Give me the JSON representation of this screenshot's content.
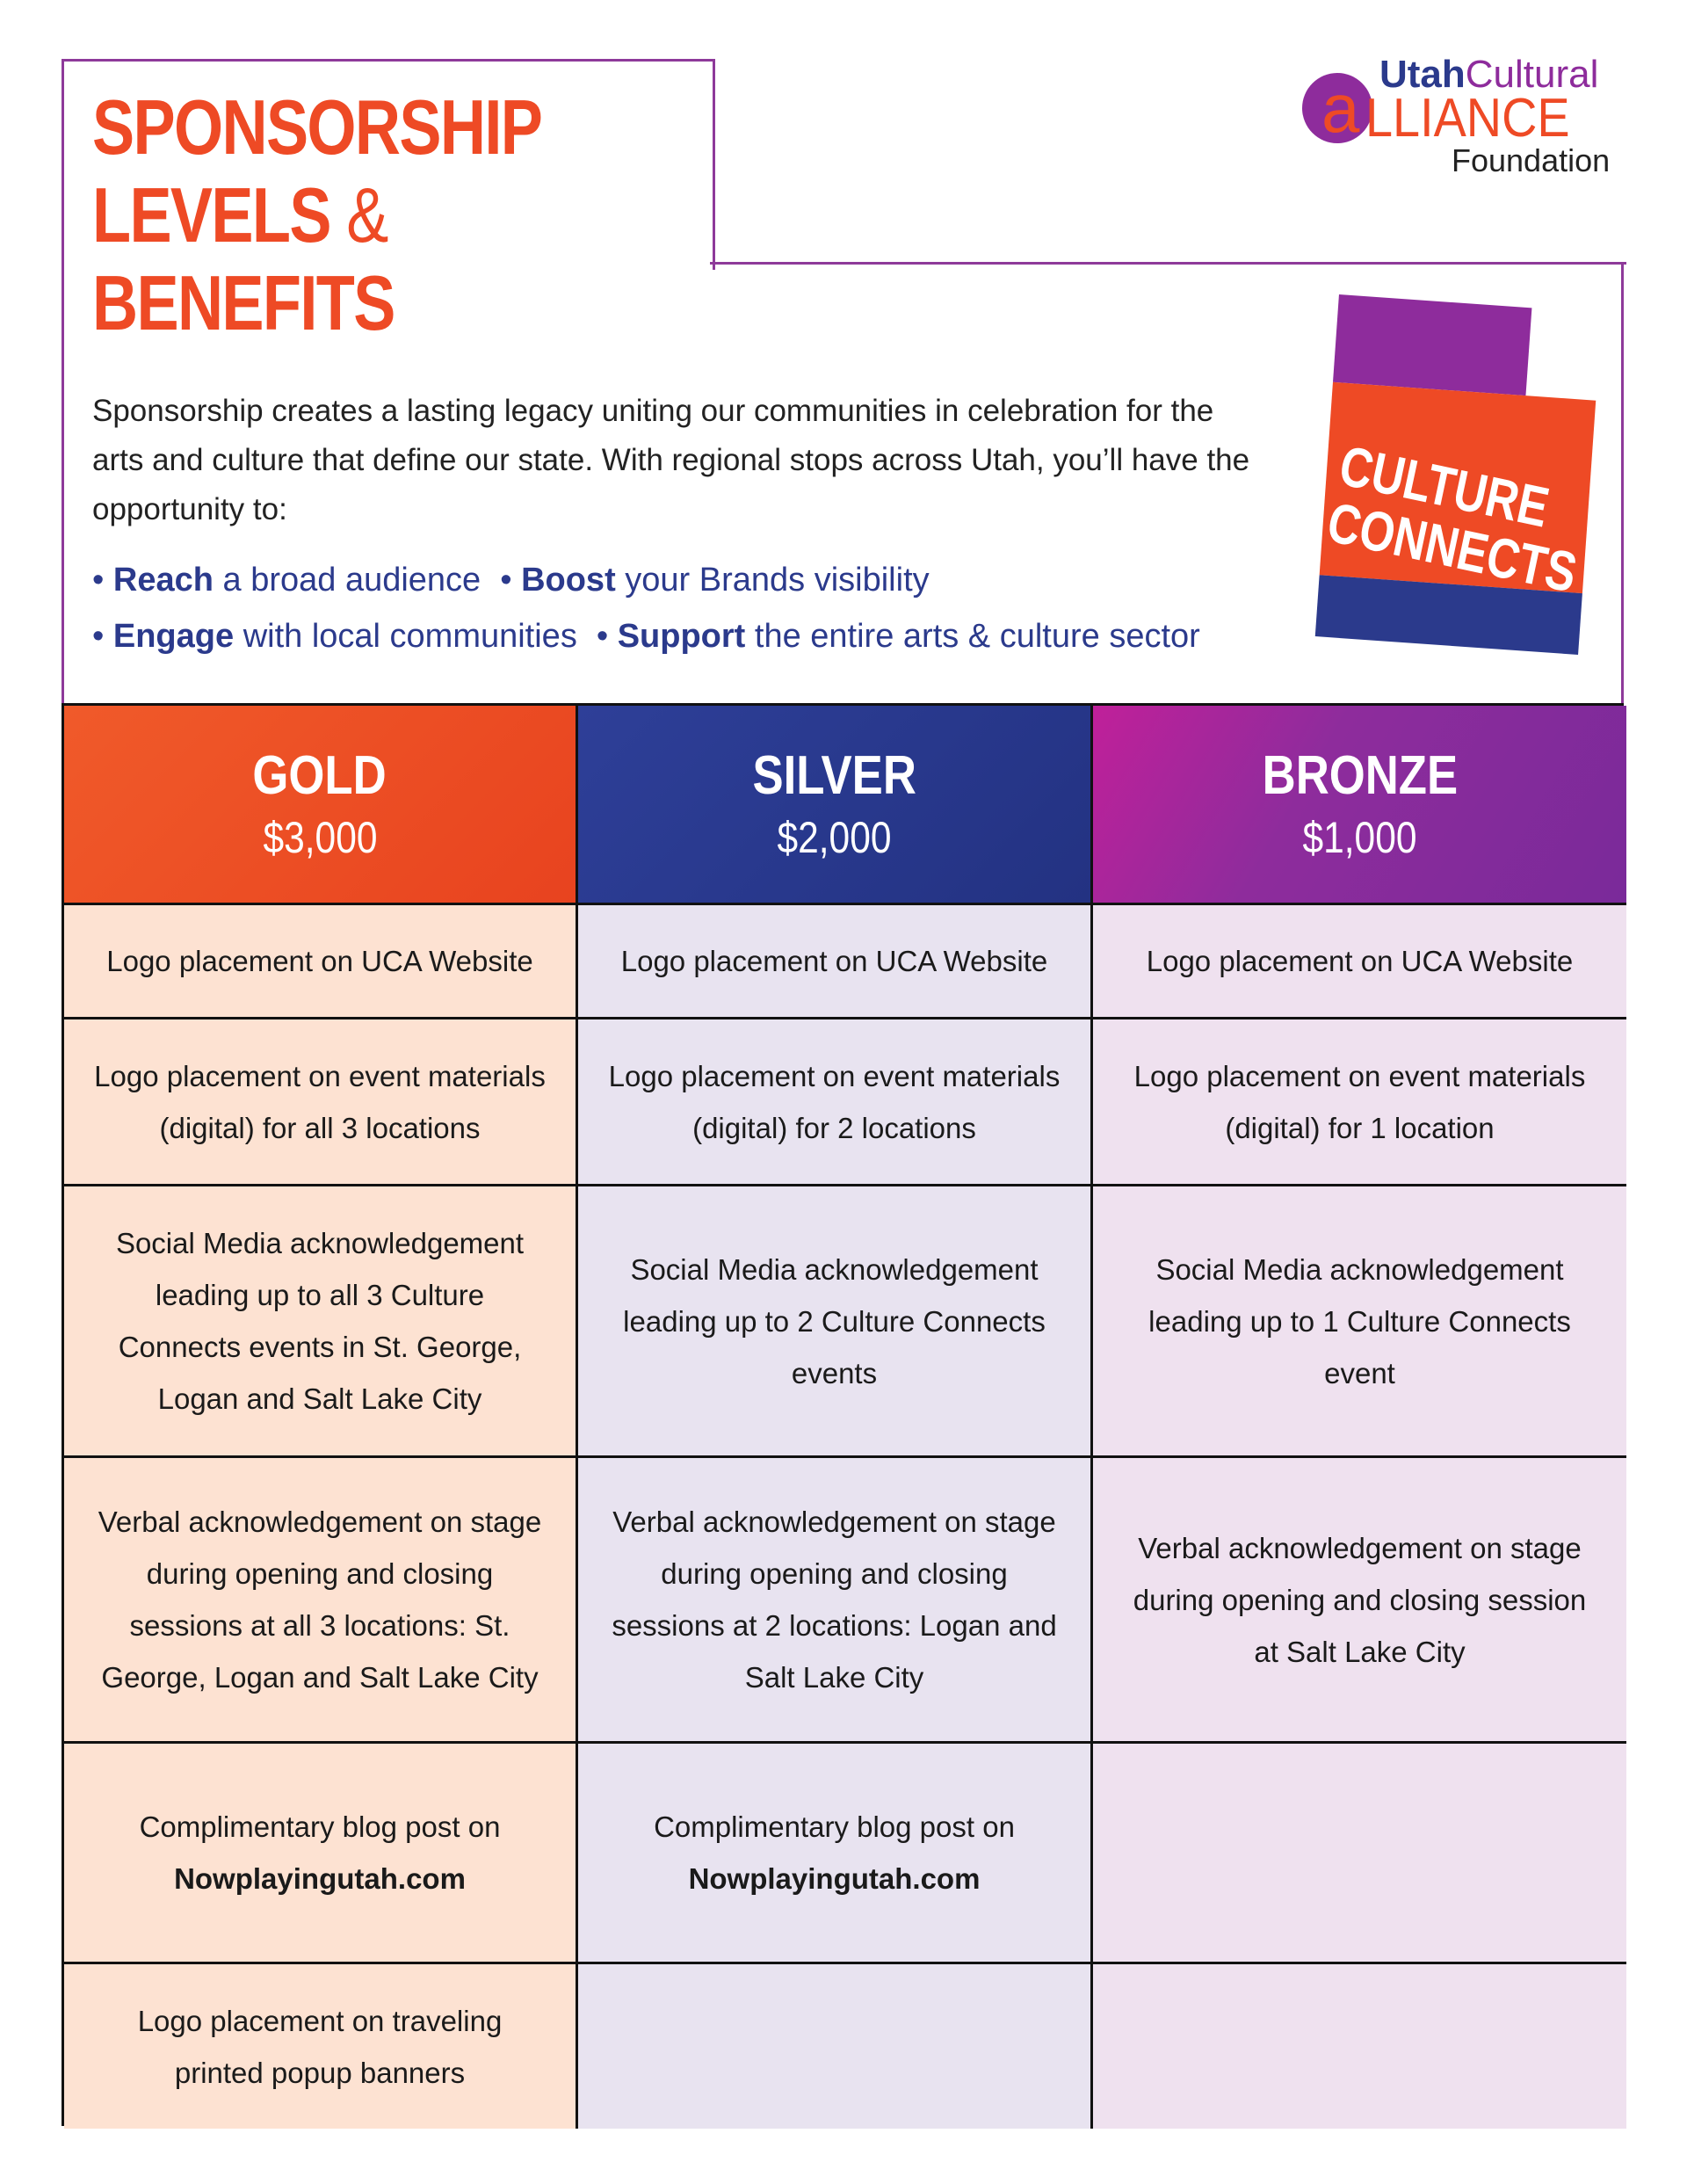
{
  "header": {
    "title": {
      "line1": "SPONSORSHIP",
      "line2": "LEVELS",
      "amp": "&",
      "line3": "BENEFITS"
    },
    "intro": "Sponsorship creates a lasting legacy uniting our communities in celebration for the arts and culture that define our state. With regional stops across Utah, you’ll have the opportunity to:",
    "bullets": [
      {
        "strong": "Reach",
        "text": "a broad audience"
      },
      {
        "strong": "Boost",
        "text": "your Brands visibility"
      },
      {
        "strong": "Engage",
        "text": "with local communities"
      },
      {
        "strong": "Support",
        "text": "the entire arts & culture sector"
      }
    ]
  },
  "logo": {
    "utah": "Utah",
    "cultural": "Cultural",
    "a": "a",
    "lliance": "LLIANCE",
    "foundation": "Foundation"
  },
  "badge": {
    "line1": "CULTURE",
    "line2": "CONNECTS"
  },
  "table": {
    "columns": [
      {
        "name": "GOLD",
        "price": "$3,000"
      },
      {
        "name": "SILVER",
        "price": "$2,000"
      },
      {
        "name": "BRONZE",
        "price": "$1,000"
      }
    ],
    "rows": [
      [
        "Logo placement on UCA Website",
        "Logo placement on UCA Website",
        "Logo placement on UCA Website"
      ],
      [
        "Logo placement on event materials (digital) for all 3 locations",
        "Logo placement on event materials (digital) for 2 locations",
        "Logo placement on event materials (digital) for 1 location"
      ],
      [
        "Social Media acknowledgement leading up to all 3 Culture Connects events in St. George, Logan and Salt Lake City",
        "Social Media acknowledgement leading up to 2 Culture Connects events",
        "Social Media acknowledgement leading up to 1 Culture Connects event"
      ],
      [
        "Verbal acknowledgement on stage during opening and closing sessions at all 3 locations: St. George, Logan and Salt Lake City",
        "Verbal acknowledgement on stage during opening and closing sessions at 2 locations: Logan and Salt Lake City",
        "Verbal acknowledgement on stage during opening and closing session at Salt Lake City"
      ],
      [
        {
          "text": "Complimentary blog post on",
          "strong": "Nowplayingutah.com"
        },
        {
          "text": "Complimentary blog post on",
          "strong": "Nowplayingutah.com"
        },
        null
      ],
      [
        "Logo placement on traveling printed popup banners",
        null,
        null
      ]
    ]
  }
}
